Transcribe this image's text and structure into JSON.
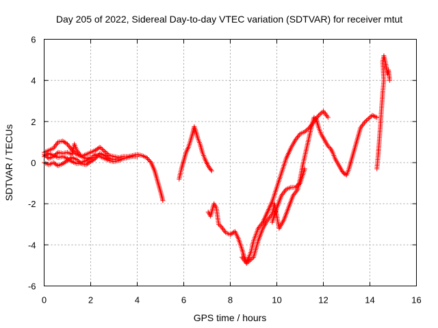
{
  "chart_data": {
    "type": "scatter",
    "title": "Day 205 of 2022, Sidereal Day-to-day VTEC variation (SDTVAR) for receiver mtut",
    "xlabel": "GPS time / hours",
    "ylabel": "SDTVAR / TECUs",
    "xlim": [
      0,
      16
    ],
    "ylim": [
      -6,
      6
    ],
    "xticks": [
      "0",
      "2",
      "4",
      "6",
      "8",
      "10",
      "12",
      "14",
      "16"
    ],
    "yticks": [
      "-6",
      "-4",
      "-2",
      "0",
      "2",
      "4",
      "6"
    ],
    "grid": true,
    "marker": "plus",
    "color": "#ff0000",
    "series": [
      {
        "segments": [
          [
            [
              0.0,
              0.5
            ],
            [
              0.2,
              0.6
            ],
            [
              0.4,
              0.7
            ],
            [
              0.6,
              1.0
            ],
            [
              0.8,
              1.05
            ],
            [
              1.0,
              0.9
            ],
            [
              1.2,
              0.6
            ],
            [
              1.4,
              0.4
            ],
            [
              1.6,
              0.3
            ],
            [
              1.8,
              0.4
            ],
            [
              2.0,
              0.5
            ],
            [
              2.2,
              0.6
            ],
            [
              2.4,
              0.75
            ],
            [
              2.6,
              0.55
            ],
            [
              2.8,
              0.35
            ],
            [
              3.0,
              0.3
            ],
            [
              3.2,
              0.25
            ],
            [
              3.4,
              0.3
            ],
            [
              3.6,
              0.3
            ],
            [
              3.8,
              0.35
            ],
            [
              4.0,
              0.4
            ],
            [
              4.2,
              0.35
            ],
            [
              4.4,
              0.25
            ],
            [
              4.6,
              0.0
            ],
            [
              4.75,
              -0.4
            ],
            [
              4.85,
              -0.8
            ],
            [
              4.95,
              -1.2
            ],
            [
              5.05,
              -1.6
            ],
            [
              5.1,
              -1.85
            ]
          ],
          [
            [
              0.0,
              0.3
            ],
            [
              0.2,
              0.45
            ],
            [
              0.4,
              0.35
            ],
            [
              0.6,
              0.25
            ],
            [
              0.8,
              0.3
            ],
            [
              1.0,
              0.2
            ],
            [
              1.2,
              0.05
            ],
            [
              1.4,
              -0.05
            ],
            [
              1.6,
              0.0
            ],
            [
              1.8,
              0.1
            ],
            [
              2.0,
              0.2
            ],
            [
              2.2,
              0.4
            ],
            [
              2.4,
              0.3
            ],
            [
              2.6,
              0.2
            ],
            [
              2.8,
              0.1
            ],
            [
              3.0,
              0.05
            ],
            [
              3.2,
              0.1
            ],
            [
              3.4,
              0.2
            ],
            [
              3.6,
              0.25
            ],
            [
              3.8,
              0.3
            ],
            [
              4.0,
              0.3
            ]
          ],
          [
            [
              0.0,
              0.0
            ],
            [
              0.2,
              -0.1
            ],
            [
              0.4,
              0.0
            ],
            [
              0.6,
              -0.15
            ],
            [
              0.8,
              -0.05
            ],
            [
              1.0,
              0.1
            ],
            [
              1.2,
              0.25
            ],
            [
              1.4,
              0.15
            ],
            [
              1.6,
              -0.05
            ],
            [
              1.8,
              -0.1
            ],
            [
              2.0,
              0.05
            ],
            [
              2.2,
              0.2
            ],
            [
              2.4,
              0.45
            ],
            [
              2.6,
              0.35
            ],
            [
              2.8,
              0.2
            ],
            [
              3.0,
              0.15
            ],
            [
              3.2,
              0.2
            ]
          ],
          [
            [
              0.0,
              0.4
            ],
            [
              0.2,
              0.2
            ],
            [
              0.4,
              0.3
            ],
            [
              0.6,
              0.5
            ],
            [
              0.8,
              0.45
            ],
            [
              1.0,
              0.5
            ],
            [
              1.2,
              0.4
            ],
            [
              1.3,
              0.9
            ],
            [
              1.4,
              0.6
            ],
            [
              1.6,
              0.3
            ],
            [
              1.8,
              0.2
            ],
            [
              2.0,
              0.25
            ]
          ],
          [
            [
              5.8,
              -0.8
            ],
            [
              5.9,
              -0.3
            ],
            [
              6.0,
              0.1
            ],
            [
              6.1,
              0.5
            ],
            [
              6.2,
              0.75
            ],
            [
              6.3,
              1.1
            ],
            [
              6.4,
              1.5
            ],
            [
              6.45,
              1.75
            ],
            [
              6.5,
              1.6
            ],
            [
              6.6,
              1.2
            ],
            [
              6.7,
              0.9
            ],
            [
              6.8,
              0.5
            ],
            [
              6.9,
              0.2
            ],
            [
              7.0,
              -0.05
            ],
            [
              7.1,
              -0.25
            ],
            [
              7.2,
              -0.4
            ]
          ],
          [
            [
              7.05,
              -2.4
            ],
            [
              7.15,
              -2.6
            ],
            [
              7.3,
              -2.0
            ],
            [
              7.4,
              -2.2
            ],
            [
              7.5,
              -3.0
            ],
            [
              7.6,
              -3.1
            ],
            [
              7.8,
              -3.4
            ],
            [
              8.0,
              -3.5
            ],
            [
              8.2,
              -3.35
            ],
            [
              8.35,
              -3.7
            ],
            [
              8.5,
              -4.2
            ],
            [
              8.6,
              -4.6
            ],
            [
              8.7,
              -4.85
            ],
            [
              8.8,
              -4.6
            ],
            [
              8.9,
              -4.3
            ],
            [
              9.0,
              -3.8
            ],
            [
              9.1,
              -3.5
            ],
            [
              9.2,
              -3.2
            ],
            [
              9.4,
              -2.9
            ],
            [
              9.6,
              -2.4
            ],
            [
              9.8,
              -1.9
            ],
            [
              10.0,
              -1.2
            ],
            [
              10.2,
              -0.5
            ],
            [
              10.4,
              0.2
            ],
            [
              10.6,
              0.7
            ],
            [
              10.8,
              1.1
            ],
            [
              11.0,
              1.4
            ],
            [
              11.2,
              1.5
            ],
            [
              11.4,
              1.7
            ],
            [
              11.6,
              2.0
            ],
            [
              11.8,
              2.3
            ],
            [
              12.0,
              2.5
            ],
            [
              12.2,
              2.2
            ]
          ],
          [
            [
              8.5,
              -4.6
            ],
            [
              8.7,
              -4.9
            ],
            [
              9.0,
              -4.6
            ],
            [
              9.2,
              -3.8
            ],
            [
              9.4,
              -3.2
            ],
            [
              9.6,
              -2.8
            ],
            [
              9.8,
              -2.5
            ],
            [
              9.9,
              -2.0
            ],
            [
              10.0,
              -2.6
            ],
            [
              10.1,
              -3.2
            ],
            [
              10.3,
              -2.8
            ],
            [
              10.5,
              -2.2
            ],
            [
              10.7,
              -1.6
            ],
            [
              10.9,
              -1.3
            ],
            [
              11.0,
              -0.8
            ],
            [
              11.1,
              -0.2
            ],
            [
              11.2,
              0.3
            ],
            [
              11.3,
              0.8
            ],
            [
              11.4,
              1.3
            ],
            [
              11.5,
              1.8
            ],
            [
              11.6,
              2.2
            ],
            [
              11.7,
              2.1
            ],
            [
              11.8,
              1.7
            ],
            [
              11.9,
              1.4
            ],
            [
              12.0,
              1.2
            ],
            [
              12.1,
              1.0
            ],
            [
              12.2,
              0.8
            ],
            [
              12.3,
              0.7
            ],
            [
              12.4,
              0.5
            ],
            [
              12.5,
              0.2
            ],
            [
              12.6,
              0.0
            ],
            [
              12.7,
              -0.2
            ],
            [
              12.8,
              -0.4
            ],
            [
              12.9,
              -0.55
            ],
            [
              13.0,
              -0.6
            ],
            [
              13.1,
              -0.3
            ],
            [
              13.2,
              0.1
            ],
            [
              13.3,
              0.5
            ],
            [
              13.4,
              0.9
            ],
            [
              13.5,
              1.3
            ],
            [
              13.6,
              1.7
            ],
            [
              13.8,
              2.0
            ],
            [
              14.0,
              2.2
            ],
            [
              14.1,
              2.3
            ],
            [
              14.2,
              2.25
            ],
            [
              14.3,
              2.2
            ]
          ],
          [
            [
              9.8,
              -2.9
            ],
            [
              10.0,
              -2.2
            ],
            [
              10.2,
              -1.6
            ],
            [
              10.4,
              -1.3
            ],
            [
              10.6,
              -1.2
            ],
            [
              10.8,
              -1.2
            ],
            [
              11.0,
              -1.0
            ],
            [
              11.2,
              -0.3
            ]
          ],
          [
            [
              14.3,
              -0.3
            ],
            [
              14.35,
              0.3
            ],
            [
              14.4,
              1.0
            ],
            [
              14.45,
              1.8
            ],
            [
              14.5,
              2.6
            ],
            [
              14.55,
              3.4
            ],
            [
              14.6,
              4.0
            ],
            [
              14.55,
              4.9
            ],
            [
              14.6,
              5.2
            ],
            [
              14.7,
              4.7
            ],
            [
              14.75,
              4.3
            ],
            [
              14.8,
              4.5
            ],
            [
              14.85,
              4.0
            ]
          ]
        ]
      }
    ]
  }
}
